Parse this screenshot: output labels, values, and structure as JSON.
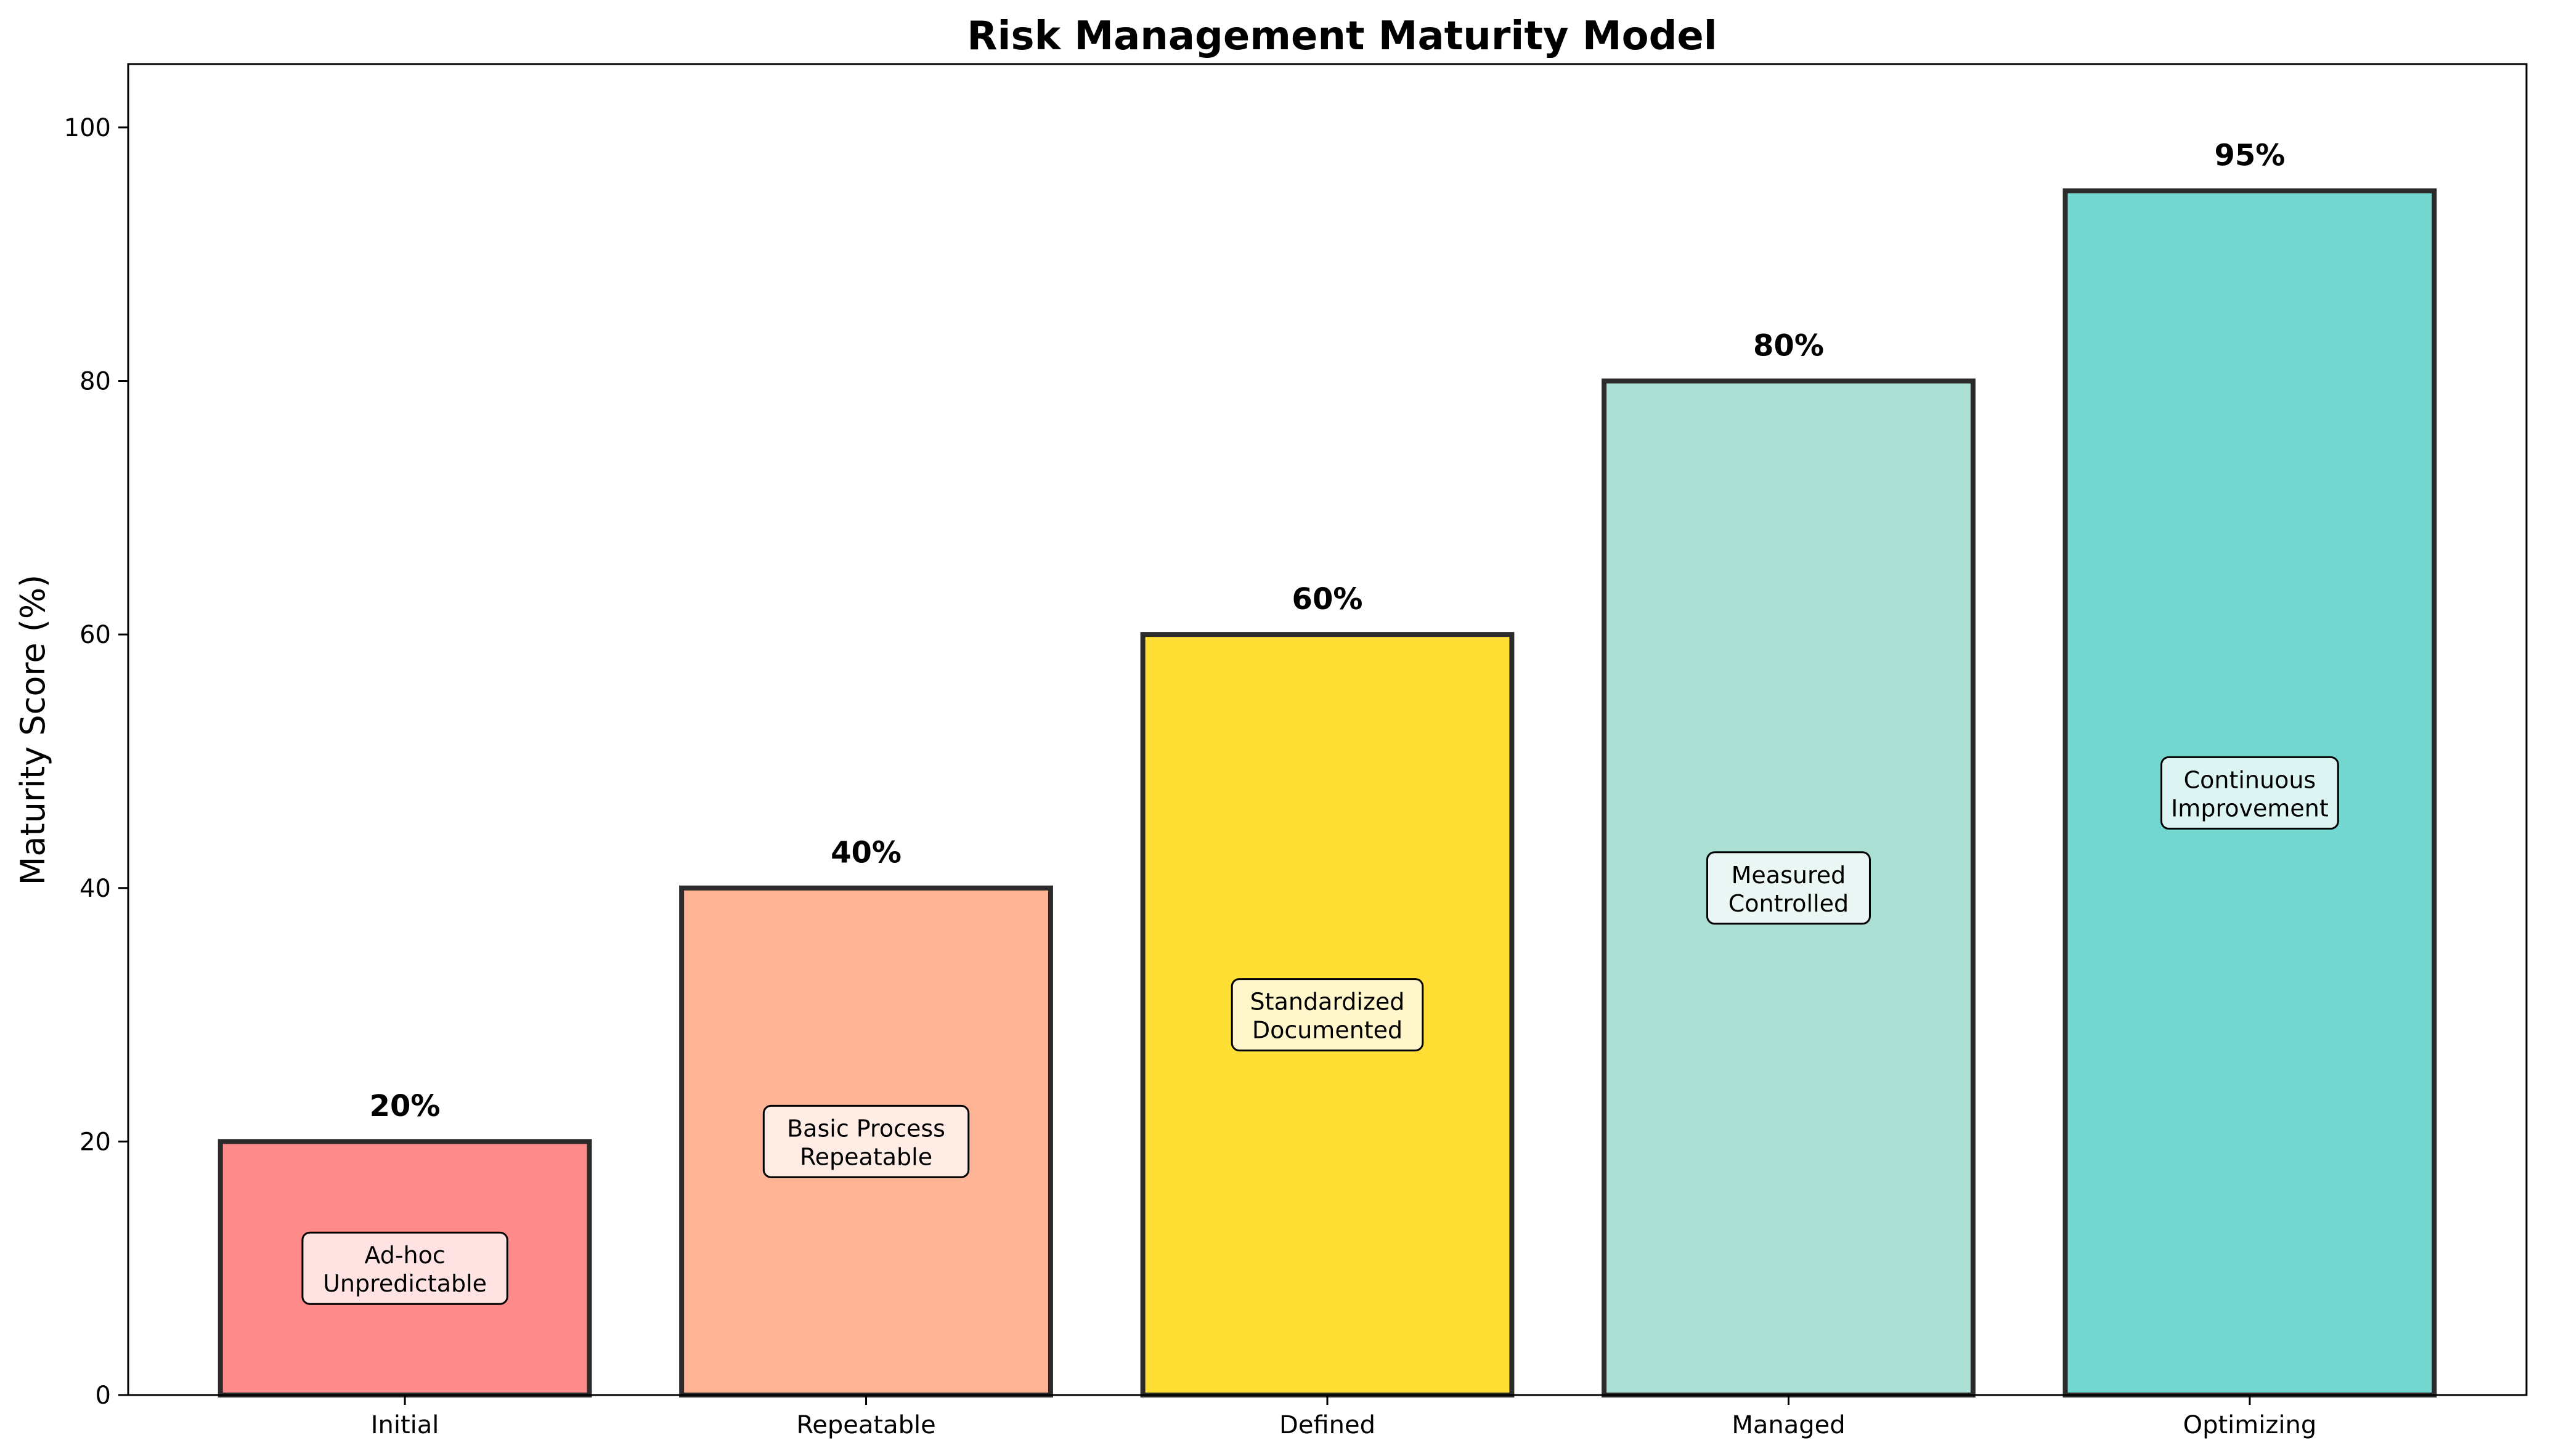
{
  "chart_data": {
    "type": "bar",
    "title": "Risk Management Maturity Model",
    "xlabel": "",
    "ylabel": "Maturity Score (%)",
    "ylim": [
      0,
      105
    ],
    "yticks": [
      0,
      20,
      40,
      60,
      80,
      100
    ],
    "grid": false,
    "legend": "none",
    "categories": [
      "Initial",
      "Repeatable",
      "Defined",
      "Managed",
      "Optimizing"
    ],
    "values": [
      20,
      40,
      60,
      80,
      95
    ],
    "value_labels": [
      "20%",
      "40%",
      "60%",
      "80%",
      "95%"
    ],
    "stage_descriptions": [
      [
        "Ad-hoc",
        "Unpredictable"
      ],
      [
        "Basic Process",
        "Repeatable"
      ],
      [
        "Standardized",
        "Documented"
      ],
      [
        "Measured",
        "Controlled"
      ],
      [
        "Continuous",
        "Improvement"
      ]
    ],
    "colors": [
      "#FF8A8A",
      "#FFB496",
      "#FFDF33",
      "#ADE0D4",
      "#73D7CF"
    ],
    "edge_color": "#2B2B2B"
  }
}
